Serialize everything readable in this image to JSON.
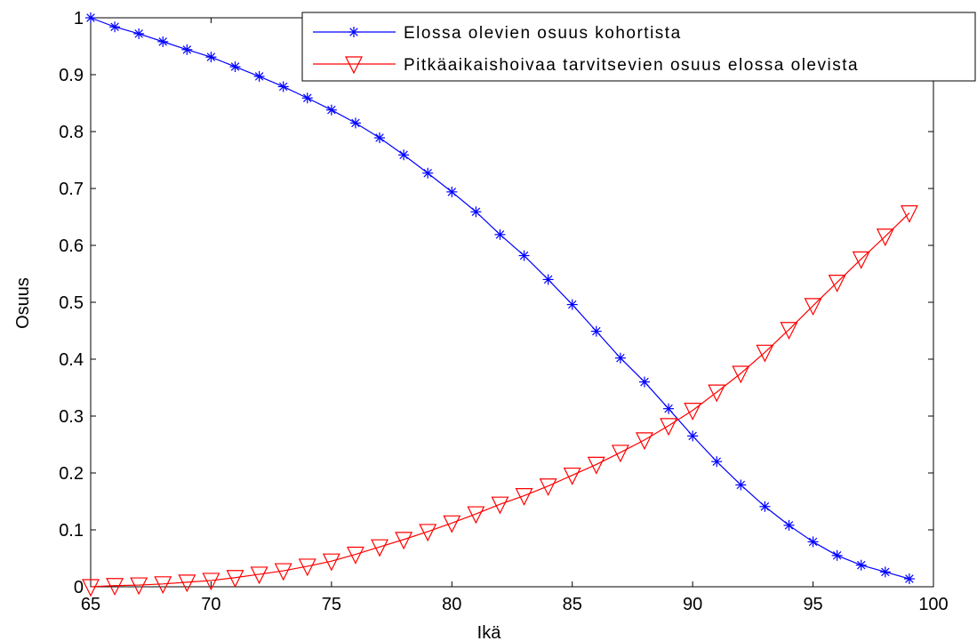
{
  "chart_data": {
    "type": "line",
    "title": "",
    "xlabel": "Ikä",
    "ylabel": "Osuus",
    "xlim": [
      65,
      100
    ],
    "ylim": [
      0,
      1
    ],
    "xticks": [
      65,
      70,
      75,
      80,
      85,
      90,
      95,
      100
    ],
    "yticks": [
      0,
      0.1,
      0.2,
      0.3,
      0.4,
      0.5,
      0.6,
      0.7,
      0.8,
      0.9,
      1
    ],
    "xtick_labels": [
      "65",
      "70",
      "75",
      "80",
      "85",
      "90",
      "95",
      "100"
    ],
    "ytick_labels": [
      "0",
      "0.1",
      "0.2",
      "0.3",
      "0.4",
      "0.5",
      "0.6",
      "0.7",
      "0.8",
      "0.9",
      "1"
    ],
    "grid": false,
    "legend_position": "top-right",
    "x": [
      65,
      66,
      67,
      68,
      69,
      70,
      71,
      72,
      73,
      74,
      75,
      76,
      77,
      78,
      79,
      80,
      81,
      82,
      83,
      84,
      85,
      86,
      87,
      88,
      89,
      90,
      91,
      92,
      93,
      94,
      95,
      96,
      97,
      98,
      99
    ],
    "series": [
      {
        "name": "Elossa olevien osuus kohortista",
        "color": "#0000ff",
        "marker": "asterisk",
        "values": [
          1.0,
          0.984,
          0.972,
          0.958,
          0.944,
          0.931,
          0.914,
          0.897,
          0.879,
          0.859,
          0.838,
          0.815,
          0.789,
          0.759,
          0.727,
          0.694,
          0.659,
          0.619,
          0.582,
          0.54,
          0.496,
          0.449,
          0.402,
          0.36,
          0.313,
          0.265,
          0.22,
          0.179,
          0.141,
          0.108,
          0.079,
          0.055,
          0.038,
          0.026,
          0.014
        ]
      },
      {
        "name": "Pitkäaikaishoivaa tarvitsevien osuus elossa olevista",
        "color": "#ff0000",
        "marker": "triangle-down",
        "values": [
          0.0,
          0.002,
          0.003,
          0.005,
          0.008,
          0.011,
          0.016,
          0.022,
          0.028,
          0.036,
          0.045,
          0.057,
          0.07,
          0.083,
          0.097,
          0.112,
          0.128,
          0.145,
          0.16,
          0.177,
          0.196,
          0.215,
          0.236,
          0.258,
          0.283,
          0.31,
          0.342,
          0.375,
          0.412,
          0.452,
          0.494,
          0.535,
          0.576,
          0.616,
          0.657
        ]
      }
    ]
  }
}
